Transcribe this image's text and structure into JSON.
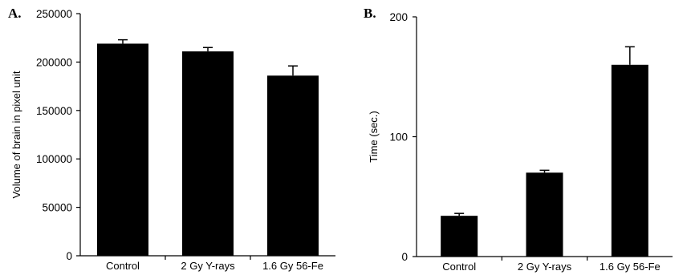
{
  "chart_data": [
    {
      "type": "bar",
      "panel_label": "A.",
      "title": "",
      "xlabel": "",
      "ylabel": "Volume of brain in pixel unit",
      "ylim": [
        0,
        250000
      ],
      "yticks": [
        "0",
        "50000",
        "100000",
        "150000",
        "200000",
        "250000"
      ],
      "categories": [
        "Control",
        "2 Gy Y-rays",
        "1.6 Gy 56-Fe"
      ],
      "values": [
        219000,
        211000,
        186000
      ],
      "errors": [
        4000,
        4000,
        10000
      ],
      "bar_color": "#000000"
    },
    {
      "type": "bar",
      "panel_label": "B.",
      "title": "",
      "xlabel": "",
      "ylabel": "Time (sec.)",
      "ylim": [
        0,
        200
      ],
      "yticks": [
        "0",
        "100",
        "200"
      ],
      "categories": [
        "Control",
        "2 Gy Y-rays",
        "1.6 Gy 56-Fe"
      ],
      "values": [
        34,
        70,
        160
      ],
      "errors": [
        2,
        2,
        15
      ],
      "bar_color": "#000000"
    }
  ]
}
